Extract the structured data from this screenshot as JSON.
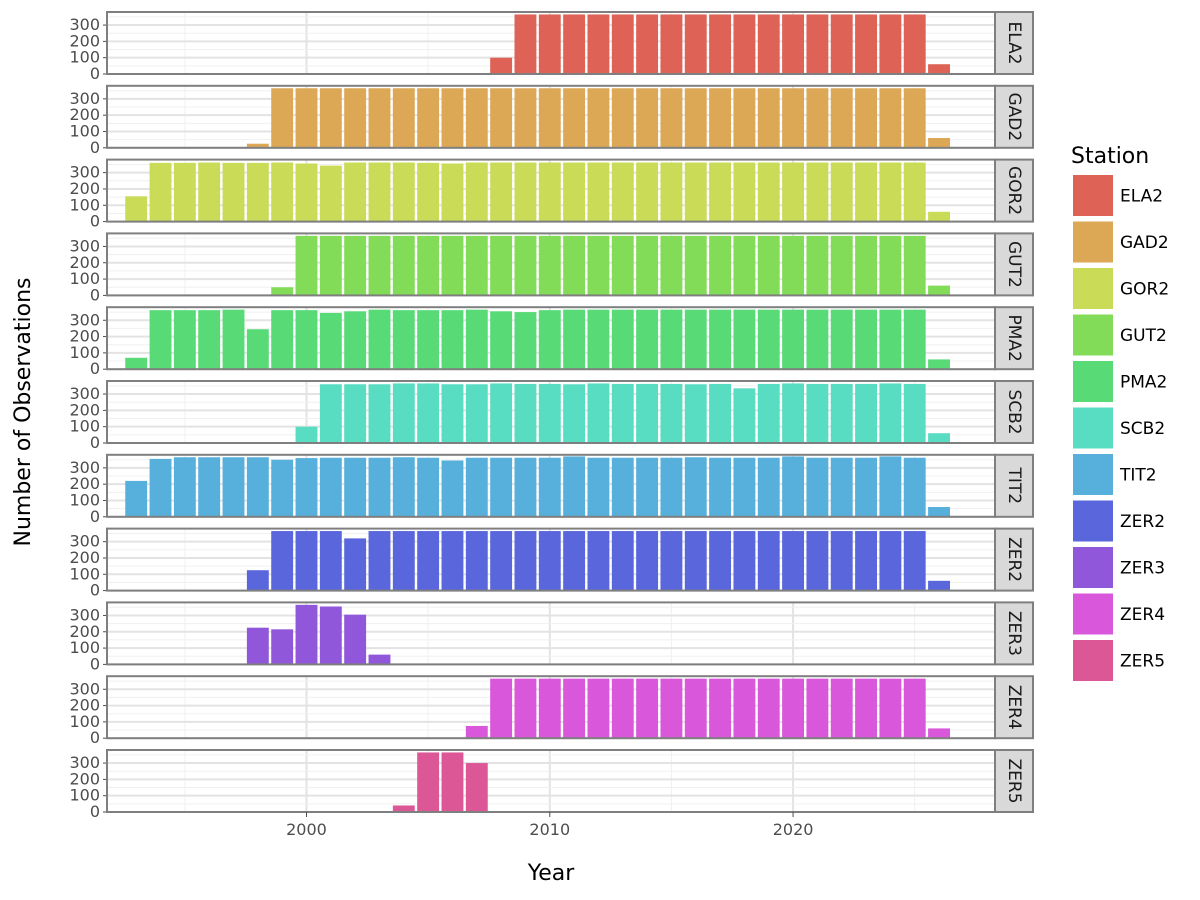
{
  "chart_data": {
    "type": "bar",
    "facet": "rows",
    "xlabel": "Year",
    "ylabel": "Number of Observations",
    "xlim": [
      1991.8,
      2028.3
    ],
    "xticks": [
      2000,
      2010,
      2020
    ],
    "xtick_labels": [
      "2000",
      "2010",
      "2020"
    ],
    "ylim": [
      0,
      380
    ],
    "yticks": [
      0,
      100,
      200,
      300
    ],
    "ytick_labels": [
      "0",
      "100",
      "200",
      "300"
    ],
    "legend": {
      "title": "Station",
      "position": "right"
    },
    "series": [
      {
        "name": "ELA2",
        "color": "#DF6257",
        "x": [
          2008,
          2009,
          2010,
          2011,
          2012,
          2013,
          2014,
          2015,
          2016,
          2017,
          2018,
          2019,
          2020,
          2021,
          2022,
          2023,
          2024,
          2025,
          2026
        ],
        "values": [
          100,
          365,
          365,
          365,
          365,
          365,
          365,
          365,
          365,
          365,
          365,
          365,
          365,
          365,
          365,
          365,
          365,
          365,
          60
        ]
      },
      {
        "name": "GAD2",
        "color": "#DCA856",
        "x": [
          1998,
          1999,
          2000,
          2001,
          2002,
          2003,
          2004,
          2005,
          2006,
          2007,
          2008,
          2009,
          2010,
          2011,
          2012,
          2013,
          2014,
          2015,
          2016,
          2017,
          2018,
          2019,
          2020,
          2021,
          2022,
          2023,
          2024,
          2025,
          2026
        ],
        "values": [
          25,
          365,
          365,
          365,
          365,
          365,
          365,
          365,
          365,
          365,
          365,
          365,
          365,
          365,
          365,
          365,
          365,
          365,
          365,
          365,
          365,
          365,
          365,
          365,
          365,
          365,
          365,
          365,
          60
        ]
      },
      {
        "name": "GOR2",
        "color": "#C9DB57",
        "x": [
          1993,
          1994,
          1995,
          1996,
          1997,
          1998,
          1999,
          2000,
          2001,
          2002,
          2003,
          2004,
          2005,
          2006,
          2007,
          2008,
          2009,
          2010,
          2011,
          2012,
          2013,
          2014,
          2015,
          2016,
          2017,
          2018,
          2019,
          2020,
          2021,
          2022,
          2023,
          2024,
          2025,
          2026
        ],
        "values": [
          155,
          360,
          360,
          362,
          360,
          360,
          362,
          356,
          343,
          362,
          362,
          362,
          360,
          356,
          362,
          362,
          362,
          362,
          362,
          362,
          362,
          362,
          362,
          362,
          362,
          362,
          362,
          362,
          362,
          362,
          362,
          362,
          362,
          60
        ]
      },
      {
        "name": "GUT2",
        "color": "#83DC57",
        "x": [
          1999,
          2000,
          2001,
          2002,
          2003,
          2004,
          2005,
          2006,
          2007,
          2008,
          2009,
          2010,
          2011,
          2012,
          2013,
          2014,
          2015,
          2016,
          2017,
          2018,
          2019,
          2020,
          2021,
          2022,
          2023,
          2024,
          2025,
          2026
        ],
        "values": [
          50,
          365,
          365,
          365,
          365,
          365,
          365,
          365,
          365,
          365,
          365,
          365,
          365,
          365,
          365,
          365,
          365,
          365,
          365,
          365,
          365,
          365,
          365,
          365,
          365,
          365,
          365,
          60
        ]
      },
      {
        "name": "PMA2",
        "color": "#58DB77",
        "x": [
          1993,
          1994,
          1995,
          1996,
          1997,
          1998,
          1999,
          2000,
          2001,
          2002,
          2003,
          2004,
          2005,
          2006,
          2007,
          2008,
          2009,
          2010,
          2011,
          2012,
          2013,
          2014,
          2015,
          2016,
          2017,
          2018,
          2019,
          2020,
          2021,
          2022,
          2023,
          2024,
          2025,
          2026
        ],
        "values": [
          70,
          362,
          362,
          362,
          365,
          245,
          362,
          362,
          345,
          355,
          365,
          362,
          362,
          362,
          365,
          355,
          350,
          362,
          365,
          365,
          365,
          365,
          365,
          365,
          365,
          365,
          365,
          365,
          365,
          365,
          365,
          365,
          365,
          60
        ]
      },
      {
        "name": "SCB2",
        "color": "#58DCC2",
        "x": [
          2000,
          2001,
          2002,
          2003,
          2004,
          2005,
          2006,
          2007,
          2008,
          2009,
          2010,
          2011,
          2012,
          2013,
          2014,
          2015,
          2016,
          2017,
          2018,
          2019,
          2020,
          2021,
          2022,
          2023,
          2024,
          2025,
          2026
        ],
        "values": [
          100,
          360,
          360,
          360,
          365,
          365,
          360,
          360,
          365,
          362,
          362,
          360,
          365,
          362,
          362,
          362,
          360,
          362,
          335,
          362,
          365,
          362,
          362,
          362,
          365,
          362,
          60
        ]
      },
      {
        "name": "TIT2",
        "color": "#56B0DB",
        "x": [
          1993,
          1994,
          1995,
          1996,
          1997,
          1998,
          1999,
          2000,
          2001,
          2002,
          2003,
          2004,
          2005,
          2006,
          2007,
          2008,
          2009,
          2010,
          2011,
          2012,
          2013,
          2014,
          2015,
          2016,
          2017,
          2018,
          2019,
          2020,
          2021,
          2022,
          2023,
          2024,
          2025,
          2026
        ],
        "values": [
          220,
          355,
          365,
          365,
          365,
          365,
          350,
          360,
          362,
          362,
          362,
          365,
          362,
          345,
          362,
          362,
          362,
          362,
          370,
          362,
          362,
          362,
          362,
          365,
          362,
          362,
          362,
          370,
          362,
          362,
          362,
          370,
          362,
          60
        ]
      },
      {
        "name": "ZER2",
        "color": "#5A67DC",
        "x": [
          1998,
          1999,
          2000,
          2001,
          2002,
          2003,
          2004,
          2005,
          2006,
          2007,
          2008,
          2009,
          2010,
          2011,
          2012,
          2013,
          2014,
          2015,
          2016,
          2017,
          2018,
          2019,
          2020,
          2021,
          2022,
          2023,
          2024,
          2025,
          2026
        ],
        "values": [
          125,
          365,
          365,
          365,
          320,
          365,
          365,
          365,
          365,
          365,
          365,
          365,
          365,
          365,
          365,
          365,
          365,
          365,
          365,
          365,
          365,
          365,
          365,
          365,
          365,
          365,
          365,
          365,
          60
        ]
      },
      {
        "name": "ZER3",
        "color": "#9157DB",
        "x": [
          1998,
          1999,
          2000,
          2001,
          2002,
          2003
        ],
        "values": [
          225,
          215,
          365,
          355,
          305,
          60
        ]
      },
      {
        "name": "ZER4",
        "color": "#D857DB",
        "x": [
          2007,
          2008,
          2009,
          2010,
          2011,
          2012,
          2013,
          2014,
          2015,
          2016,
          2017,
          2018,
          2019,
          2020,
          2021,
          2022,
          2023,
          2024,
          2025,
          2026
        ],
        "values": [
          75,
          365,
          365,
          365,
          365,
          365,
          365,
          365,
          365,
          365,
          365,
          365,
          365,
          365,
          365,
          365,
          365,
          365,
          365,
          60
        ]
      },
      {
        "name": "ZER5",
        "color": "#DB5796",
        "x": [
          2004,
          2005,
          2006,
          2007
        ],
        "values": [
          40,
          365,
          365,
          300
        ]
      }
    ]
  }
}
